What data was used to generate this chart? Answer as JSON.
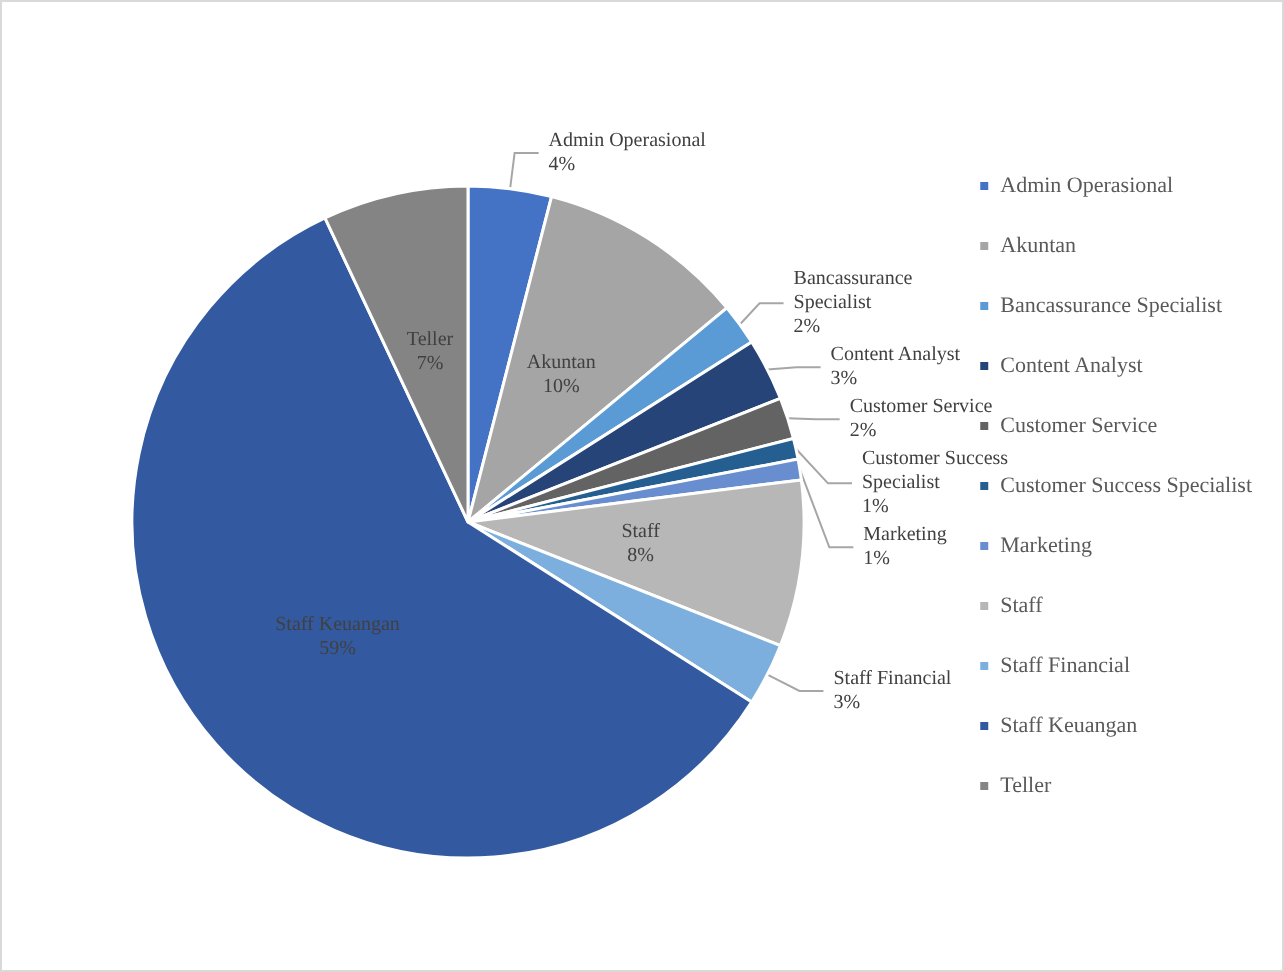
{
  "chart_data": {
    "type": "pie",
    "categories": [
      "Admin Operasional",
      "Akuntan",
      "Bancassurance Specialist",
      "Content Analyst",
      "Customer Service",
      "Customer Success Specialist",
      "Marketing",
      "Staff",
      "Staff Financial",
      "Staff Keuangan",
      "Teller"
    ],
    "values": [
      4,
      10,
      2,
      3,
      2,
      1,
      1,
      8,
      3,
      59,
      7
    ],
    "value_labels": [
      "4%",
      "10%",
      "2%",
      "3%",
      "2%",
      "1%",
      "1%",
      "8%",
      "3%",
      "59%",
      "7%"
    ],
    "colors": [
      "#4472c4",
      "#a5a5a5",
      "#5b9bd5",
      "#264478",
      "#636363",
      "#255e91",
      "#698ed0",
      "#b7b7b7",
      "#7cafdd",
      "#335aa1",
      "#848484"
    ],
    "legend": "right"
  }
}
